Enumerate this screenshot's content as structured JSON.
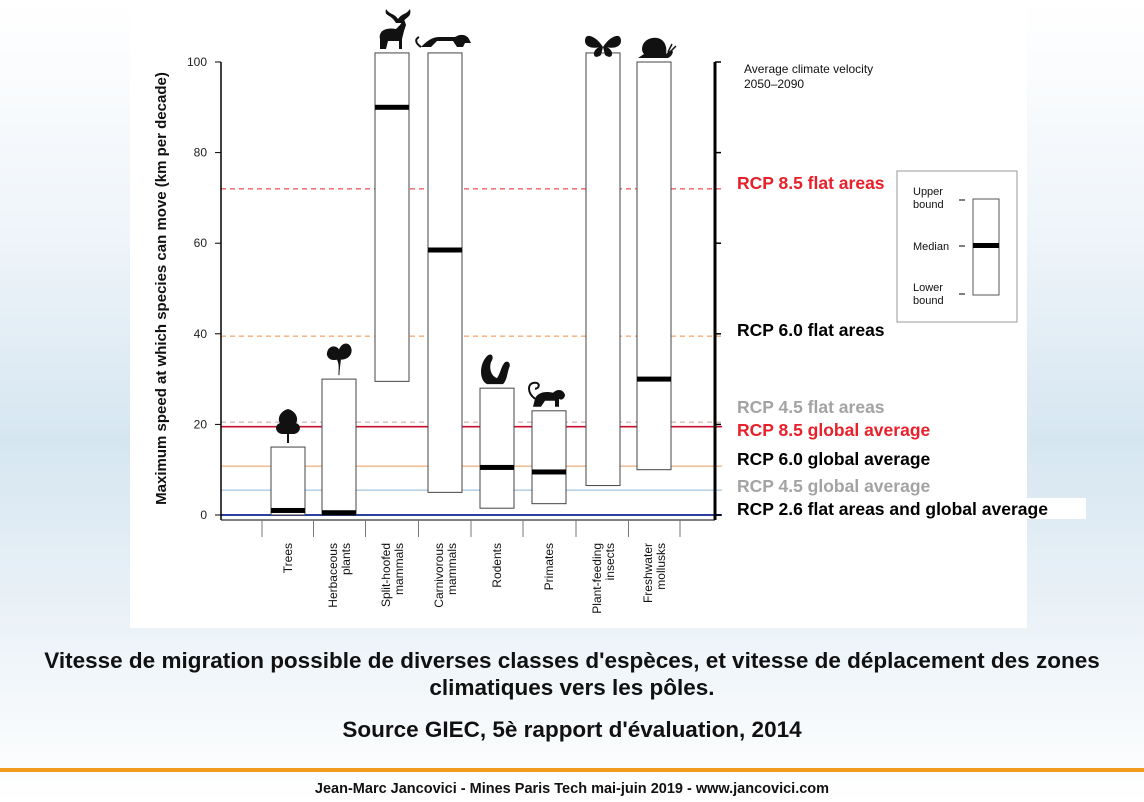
{
  "chart_data": {
    "type": "bar",
    "title": "",
    "ylabel": "Maximum speed at which species can move (km per decade)",
    "xlabel": "",
    "ylim": [
      0,
      100
    ],
    "yticks": [
      "0",
      "20",
      "40",
      "60",
      "80",
      "100"
    ],
    "categories": [
      "Trees",
      "Herbaceous plants",
      "Split-hoofed mammals",
      "Carnivorous mammals",
      "Rodents",
      "Primates",
      "Plant-feeding insects",
      "Freshwater mollusks"
    ],
    "category_lines": [
      [
        "Trees"
      ],
      [
        "Herbaceous",
        "plants"
      ],
      [
        "Split-hoofed",
        "mammals"
      ],
      [
        "Carnivorous",
        "mammals"
      ],
      [
        "Rodents"
      ],
      [
        "Primates"
      ],
      [
        "Plant-feeding",
        "insects"
      ],
      [
        "Freshwater",
        "mollusks"
      ]
    ],
    "series": [
      {
        "name": "Upper bound",
        "values": [
          15,
          30,
          102,
          102,
          28,
          23,
          102,
          100
        ]
      },
      {
        "name": "Median",
        "values": [
          1,
          0.5,
          90,
          58.5,
          10.5,
          9.5,
          null,
          30
        ]
      },
      {
        "name": "Lower bound",
        "values": [
          0,
          0,
          29.5,
          5,
          1.5,
          2.5,
          6.5,
          10
        ]
      }
    ],
    "icons": [
      "tree-icon",
      "herbaceous-plant-icon",
      "moose-icon",
      "big-cat-icon",
      "squirrel-icon",
      "monkey-icon",
      "butterfly-icon",
      "snail-icon"
    ],
    "velocity_heading": [
      "Average climate velocity",
      "2050–2090"
    ],
    "reference_lines": [
      {
        "label": "RCP 8.5 flat areas",
        "value": 72,
        "color": "#e8202a",
        "line_color": "#e8202a",
        "dashed": true
      },
      {
        "label": "RCP 6.0 flat areas",
        "value": 39.5,
        "color": "#000000",
        "line_color": "#f08a3c",
        "dashed": true
      },
      {
        "label": "RCP 4.5 flat areas",
        "value": 20.5,
        "color": "#a3a3a3",
        "line_color": "#c9a0a0",
        "dashed": true
      },
      {
        "label": "RCP 8.5 global average",
        "value": 19.5,
        "color": "#e8202a",
        "line_color": "#c8102e",
        "dashed": false
      },
      {
        "label": "RCP 6.0 global average",
        "value": 10.8,
        "color": "#000000",
        "line_color": "#e89a58",
        "dashed": false
      },
      {
        "label": "RCP 4.5 global average",
        "value": 5.5,
        "color": "#a3a3a3",
        "line_color": "#8ab4d8",
        "dashed": false
      },
      {
        "label": "RCP 2.6 flat areas and global average",
        "value": 0,
        "color": "#000000",
        "line_color": "#2b3f9e",
        "dashed": false
      }
    ],
    "legend": {
      "upper": [
        "Upper",
        "bound"
      ],
      "median": "Median",
      "lower": [
        "Lower",
        "bound"
      ],
      "placement": "right"
    },
    "grid": false
  },
  "caption": "Vitesse de migration possible de diverses classes d'espèces, et vitesse de déplacement des zones climatiques vers les pôles.",
  "source": "Source GIEC, 5è rapport d'évaluation, 2014",
  "footer": "Jean-Marc Jancovici - Mines Paris Tech mai-juin 2019 - www.jancovici.com",
  "colors": {
    "accent": "#f29a1f",
    "box_fill": "#ffffff",
    "median": "#000000"
  }
}
